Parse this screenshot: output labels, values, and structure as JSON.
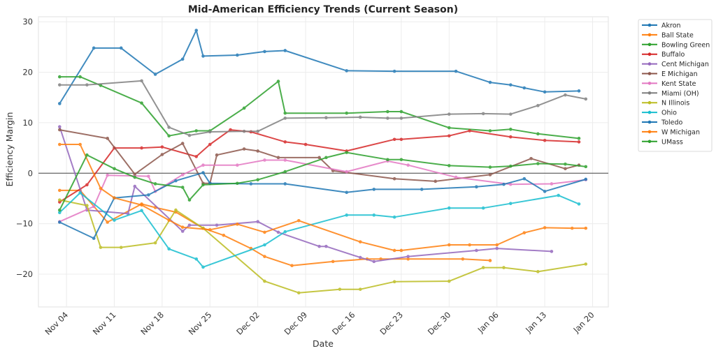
{
  "chart_data": {
    "type": "line",
    "title": "Mid-American Efficiency Trends (Current Season)",
    "xlabel": "Date",
    "ylabel": "Efficiency Margin",
    "ylim": [
      -26.5,
      31
    ],
    "yticks": [
      -20,
      -10,
      0,
      10,
      20,
      30
    ],
    "yticklabels": [
      "−20",
      "−10",
      "0",
      "10",
      "20",
      "30"
    ],
    "xlim_day": [
      -4.1,
      79.3
    ],
    "xticks_day": [
      0,
      7,
      14,
      21,
      28,
      35,
      42,
      49,
      56,
      63,
      70,
      77
    ],
    "xticklabels": [
      "Nov 04",
      "Nov 11",
      "Nov 18",
      "Nov 25",
      "Dec 02",
      "Dec 09",
      "Dec 16",
      "Dec 23",
      "Dec 30",
      "Jan 06",
      "Jan 13",
      "Jan 20"
    ],
    "x_unit": "days since Nov 04",
    "zero_line": true,
    "grid": true,
    "legend_position": "outside-top-right",
    "series": [
      {
        "name": "Akron",
        "color": "#1f77b4",
        "x": [
          -1,
          4,
          8,
          13,
          17,
          19,
          20,
          25,
          29,
          32,
          41,
          48,
          57,
          62,
          65,
          67,
          70,
          75
        ],
        "values": [
          13.8,
          24.8,
          24.8,
          19.6,
          22.6,
          28.3,
          23.2,
          23.4,
          24.1,
          24.3,
          20.3,
          20.2,
          20.2,
          18,
          17.5,
          16.9,
          16.1,
          16.3
        ]
      },
      {
        "name": "Ball State",
        "color": "#ff7f0e",
        "x": [
          -1,
          2,
          6,
          11,
          13,
          16,
          20,
          23,
          27,
          29,
          33,
          39,
          44,
          46,
          50,
          58,
          62
        ],
        "values": [
          -3.4,
          -3.4,
          -9.7,
          -6.1,
          -6.8,
          -7.7,
          -10.9,
          -12.3,
          -14.9,
          -16.5,
          -18.3,
          -17.5,
          -17,
          -17,
          -17,
          -17,
          -17.3
        ]
      },
      {
        "name": "Bowling Green",
        "color": "#2ca02c",
        "x": [
          -1,
          2,
          5,
          11,
          15,
          19,
          21,
          26,
          31,
          32,
          41,
          47,
          49,
          56,
          62,
          65,
          69,
          75
        ],
        "values": [
          19.1,
          19.1,
          17.4,
          13.9,
          7.4,
          8.4,
          8.4,
          12.9,
          18.2,
          11.9,
          11.9,
          12.2,
          12.2,
          9,
          8.4,
          8.7,
          7.8,
          6.9
        ]
      },
      {
        "name": "Buffalo",
        "color": "#d62728",
        "x": [
          -1,
          3,
          7,
          11,
          14,
          19,
          21,
          24,
          27,
          32,
          35,
          41,
          48,
          49,
          56,
          59,
          65,
          70,
          75
        ],
        "values": [
          -5.7,
          -2.3,
          5,
          5,
          5.2,
          3.3,
          5.7,
          8.6,
          8.2,
          6.2,
          5.7,
          4.4,
          6.7,
          6.7,
          7.4,
          8.4,
          7.2,
          6.5,
          6.2
        ]
      },
      {
        "name": "Cent Michigan",
        "color": "#9467bd",
        "x": [
          -1,
          3,
          9,
          10,
          17,
          18,
          22,
          28,
          31,
          37,
          38,
          43,
          45,
          50,
          60,
          63,
          71
        ],
        "values": [
          9.2,
          -7.3,
          -8,
          -2.6,
          -11.5,
          -10.3,
          -10.3,
          -9.6,
          -11.7,
          -14.5,
          -14.5,
          -16.7,
          -17.5,
          -16.5,
          -15.3,
          -14.9,
          -15.5
        ]
      },
      {
        "name": "E Michigan",
        "color": "#8c564b",
        "x": [
          -1,
          6,
          10,
          14,
          17,
          20,
          21,
          22,
          26,
          28,
          31,
          37,
          39,
          48,
          54,
          62,
          68,
          73,
          75
        ],
        "values": [
          8.6,
          6.9,
          -0.2,
          3.7,
          5.9,
          -2,
          -2,
          3.6,
          4.8,
          4.4,
          3.1,
          3.1,
          0.5,
          -1.1,
          -1.6,
          -0.3,
          2.9,
          0.9,
          1.6
        ]
      },
      {
        "name": "Kent State",
        "color": "#e377c2",
        "x": [
          -1,
          4,
          6,
          12,
          13,
          17,
          20,
          25,
          29,
          32,
          41,
          47,
          50,
          57,
          65,
          71,
          76
        ],
        "values": [
          -9.6,
          -6.6,
          -0.4,
          -0.6,
          -3.6,
          -0.3,
          1.6,
          1.6,
          2.6,
          2.6,
          0.3,
          2.4,
          1.6,
          -0.8,
          -2.2,
          -2.1,
          -1.3
        ]
      },
      {
        "name": "Miami (OH)",
        "color": "#7f7f7f",
        "x": [
          -1,
          3,
          11,
          15,
          18,
          21,
          26,
          28,
          32,
          38,
          43,
          47,
          49,
          56,
          61,
          65,
          69,
          73,
          76
        ],
        "values": [
          17.5,
          17.5,
          18.3,
          9.1,
          7.5,
          8.2,
          8.3,
          8.3,
          10.9,
          11,
          11.1,
          10.9,
          10.9,
          11.7,
          11.8,
          11.7,
          13.4,
          15.5,
          14.7
        ]
      },
      {
        "name": "N Illinois",
        "color": "#bcbd22",
        "x": [
          -1,
          3,
          5,
          8,
          13,
          16,
          20,
          29,
          34,
          40,
          43,
          48,
          56,
          61,
          64,
          69,
          76
        ],
        "values": [
          -5.3,
          -6.4,
          -14.7,
          -14.7,
          -13.8,
          -7.3,
          -10.9,
          -21.4,
          -23.7,
          -23,
          -23,
          -21.5,
          -21.4,
          -18.7,
          -18.7,
          -19.5,
          -18
        ]
      },
      {
        "name": "Ohio",
        "color": "#17becf",
        "x": [
          -1,
          2,
          7,
          11,
          15,
          19,
          20,
          29,
          32,
          41,
          45,
          48,
          56,
          61,
          65,
          72,
          75
        ],
        "values": [
          -7.8,
          -3.9,
          -9.3,
          -7.4,
          -15,
          -17,
          -18.6,
          -14.2,
          -11.6,
          -8.3,
          -8.3,
          -8.7,
          -6.9,
          -6.9,
          -6,
          -4.4,
          -6.1
        ]
      },
      {
        "name": "Toledo",
        "color": "#1f77b4",
        "x": [
          -1,
          4,
          7,
          12,
          16,
          20,
          21,
          27,
          32,
          41,
          45,
          52,
          60,
          64,
          67,
          70,
          76
        ],
        "values": [
          -9.7,
          -12.9,
          -4.9,
          -4.3,
          -1.5,
          0.1,
          -2,
          -2.1,
          -2.1,
          -3.8,
          -3.2,
          -3.2,
          -2.7,
          -2.2,
          -1.1,
          -3.6,
          -1.2
        ]
      },
      {
        "name": "W Michigan",
        "color": "#ff7f0e",
        "x": [
          -1,
          2,
          5,
          7,
          11,
          15,
          17,
          21,
          25,
          29,
          34,
          43,
          48,
          49,
          56,
          59,
          63,
          67,
          70,
          74,
          76
        ],
        "values": [
          5.7,
          5.7,
          -3,
          -4.9,
          -6.3,
          -9.3,
          -10.7,
          -11.2,
          -10.1,
          -11.7,
          -9.4,
          -13.6,
          -15.3,
          -15.3,
          -14.2,
          -14.2,
          -14.2,
          -11.8,
          -10.8,
          -10.9,
          -10.9
        ]
      },
      {
        "name": "UMass",
        "color": "#2ca02c",
        "x": [
          -1,
          3,
          7,
          10,
          13,
          17,
          18,
          20,
          25,
          28,
          32,
          38,
          41,
          47,
          49,
          56,
          62,
          65,
          69,
          73,
          76
        ],
        "values": [
          -7.3,
          3.6,
          0.9,
          -0.8,
          -2.1,
          -2.8,
          -5.3,
          -2.3,
          -2,
          -1.3,
          0.3,
          3.1,
          4.1,
          2.7,
          2.7,
          1.5,
          1.2,
          1.4,
          1.9,
          1.8,
          1.3
        ]
      }
    ]
  }
}
